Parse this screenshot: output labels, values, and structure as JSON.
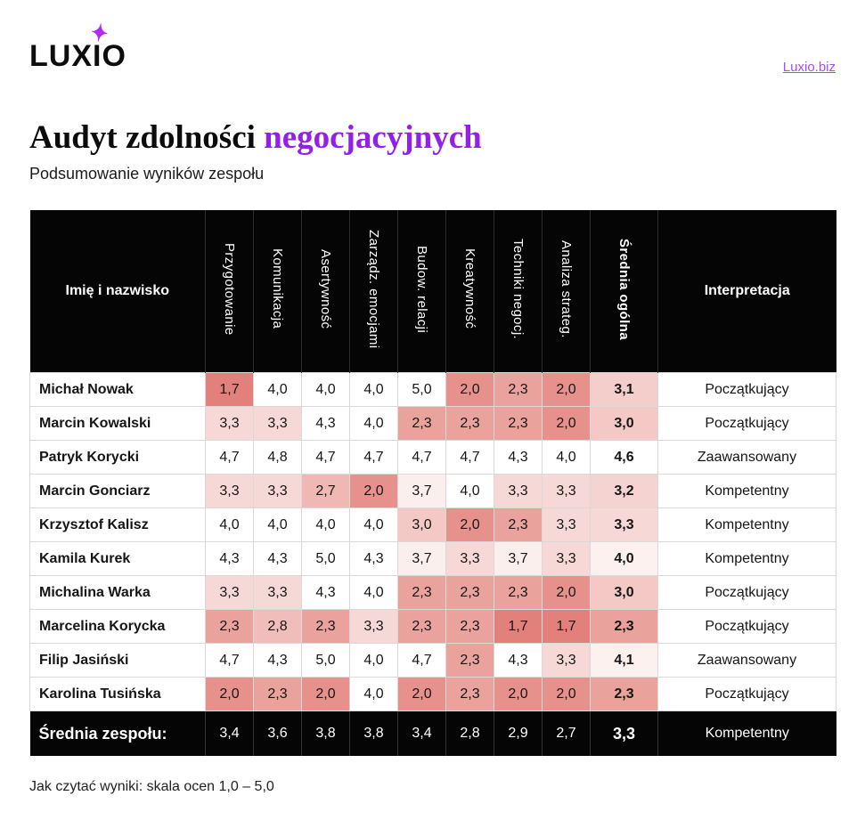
{
  "brand": {
    "logo_text": "LUXIO",
    "star_icon": "✦",
    "link_label": "Luxio.biz"
  },
  "header": {
    "title_black": "Audyt zdolności",
    "title_accent": "negocjacyjnych",
    "subtitle": "Podsumowanie wyników zespołu"
  },
  "table": {
    "name_header": "Imię i nazwisko",
    "skill_headers": [
      "Przygotowanie",
      "Komunikacja",
      "Asertywność",
      "Zarządz. emocjami",
      "Budow. relacji",
      "Kreatywność",
      "Techniki negocj.",
      "Analiza strateg."
    ],
    "avg_header": "Średnia ogólna",
    "interpretation_header": "Interpretacja",
    "rows": [
      {
        "name": "Michał Nowak",
        "scores": [
          "1,7",
          "4,0",
          "4,0",
          "4,0",
          "5,0",
          "2,0",
          "2,3",
          "2,0"
        ],
        "avg": "3,1",
        "interpretation": "Początkujący"
      },
      {
        "name": "Marcin Kowalski",
        "scores": [
          "3,3",
          "3,3",
          "4,3",
          "4,0",
          "2,3",
          "2,3",
          "2,3",
          "2,0"
        ],
        "avg": "3,0",
        "interpretation": "Początkujący"
      },
      {
        "name": "Patryk Korycki",
        "scores": [
          "4,7",
          "4,8",
          "4,7",
          "4,7",
          "4,7",
          "4,7",
          "4,3",
          "4,0"
        ],
        "avg": "4,6",
        "interpretation": "Zaawansowany"
      },
      {
        "name": "Marcin Gonciarz",
        "scores": [
          "3,3",
          "3,3",
          "2,7",
          "2,0",
          "3,7",
          "4,0",
          "3,3",
          "3,3"
        ],
        "avg": "3,2",
        "interpretation": "Kompetentny"
      },
      {
        "name": "Krzysztof Kalisz",
        "scores": [
          "4,0",
          "4,0",
          "4,0",
          "4,0",
          "3,0",
          "2,0",
          "2,3",
          "3,3"
        ],
        "avg": "3,3",
        "interpretation": "Kompetentny"
      },
      {
        "name": "Kamila Kurek",
        "scores": [
          "4,3",
          "4,3",
          "5,0",
          "4,3",
          "3,7",
          "3,3",
          "3,7",
          "3,3"
        ],
        "avg": "4,0",
        "interpretation": "Kompetentny"
      },
      {
        "name": "Michalina Warka",
        "scores": [
          "3,3",
          "3,3",
          "4,3",
          "4,0",
          "2,3",
          "2,3",
          "2,3",
          "2,0"
        ],
        "avg": "3,0",
        "interpretation": "Początkujący"
      },
      {
        "name": "Marcelina Korycka",
        "scores": [
          "2,3",
          "2,8",
          "2,3",
          "3,3",
          "2,3",
          "2,3",
          "1,7",
          "1,7"
        ],
        "avg": "2,3",
        "interpretation": "Początkujący"
      },
      {
        "name": "Filip Jasiński",
        "scores": [
          "4,7",
          "4,3",
          "5,0",
          "4,0",
          "4,7",
          "2,3",
          "4,3",
          "3,3"
        ],
        "avg": "4,1",
        "interpretation": "Zaawansowany"
      },
      {
        "name": "Karolina Tusińska",
        "scores": [
          "2,0",
          "2,3",
          "2,0",
          "4,0",
          "2,0",
          "2,3",
          "2,0",
          "2,0"
        ],
        "avg": "2,3",
        "interpretation": "Początkujący"
      }
    ],
    "summary": {
      "label": "Średnia zespołu:",
      "scores": [
        "3,4",
        "3,6",
        "3,8",
        "3,8",
        "3,4",
        "2,8",
        "2,9",
        "2,7"
      ],
      "avg": "3,3",
      "interpretation": "Kompetentny"
    }
  },
  "footer_note": "Jak czytać wyniki: skala ocen 1,0 – 5,0",
  "colors": {
    "accent": "#9320e8",
    "link": "#a64df2",
    "star": "#b429f9",
    "header-bg": "#050505",
    "heat-base": "#e0766f"
  },
  "heatmap": {
    "white_above": 3.95,
    "scale_min": 1.5,
    "scale_range": 2.5
  }
}
